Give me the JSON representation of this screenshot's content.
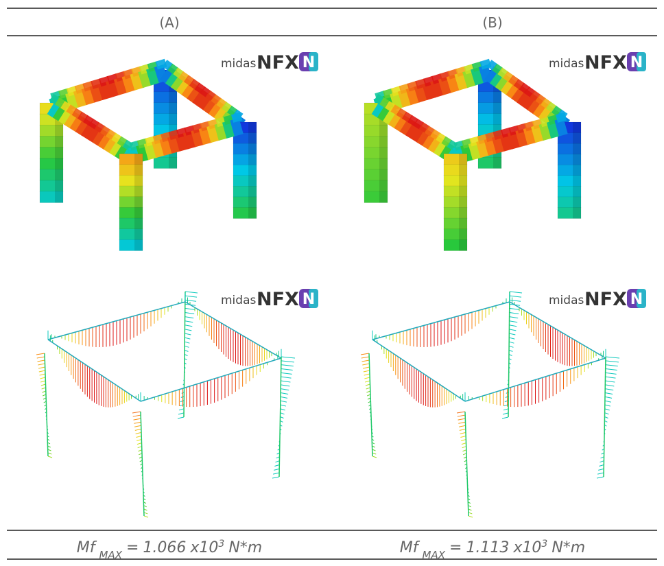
{
  "header": {
    "columns": [
      "(A)",
      "(B)"
    ]
  },
  "logo": {
    "brand": "midas",
    "product": "NFX",
    "icon": "N"
  },
  "footer": [
    {
      "symbol": "Mf",
      "subscript": "MAX",
      "relation": "=",
      "coefficient": "1.066",
      "multiplier": "x10",
      "exponent": "3",
      "unit": "N*m"
    },
    {
      "symbol": "Mf",
      "subscript": "MAX",
      "relation": "=",
      "coefficient": "1.113",
      "multiplier": "x10",
      "exponent": "3",
      "unit": "N*m"
    }
  ]
}
